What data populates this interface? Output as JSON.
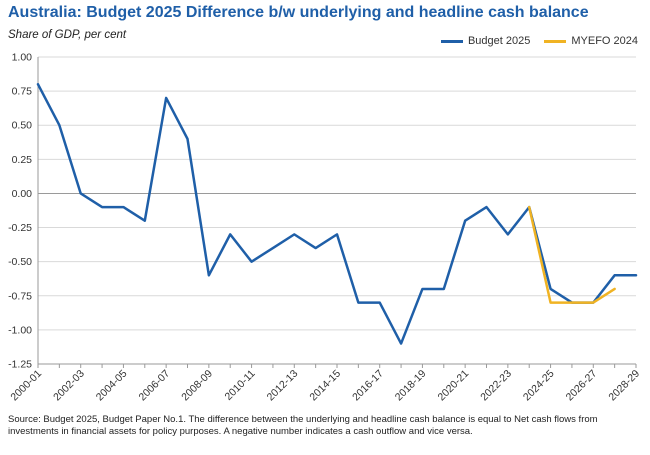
{
  "chart_data": {
    "type": "line",
    "title": "Australia: Budget 2025 Difference b/w underlying and headline cash balance",
    "subtitle": "Share of GDP, per cent",
    "ylim": [
      -1.25,
      1.0
    ],
    "y_ticks": [
      "1.00",
      "0.75",
      "0.50",
      "0.25",
      "0.00",
      "-0.25",
      "-0.50",
      "-0.75",
      "-1.00",
      "-1.25"
    ],
    "y_tick_values": [
      1.0,
      0.75,
      0.5,
      0.25,
      0.0,
      -0.25,
      -0.5,
      -0.75,
      -1.0,
      -1.25
    ],
    "categories": [
      "2000-01",
      "2001-02",
      "2002-03",
      "2003-04",
      "2004-05",
      "2005-06",
      "2006-07",
      "2007-08",
      "2008-09",
      "2009-10",
      "2010-11",
      "2011-12",
      "2012-13",
      "2013-14",
      "2014-15",
      "2015-16",
      "2016-17",
      "2017-18",
      "2018-19",
      "2019-20",
      "2020-21",
      "2021-22",
      "2022-23",
      "2023-24",
      "2024-25",
      "2025-26",
      "2026-27",
      "2027-28",
      "2028-29"
    ],
    "x_tick_labels": [
      "2000-01",
      "2002-03",
      "2004-05",
      "2006-07",
      "2008-09",
      "2010-11",
      "2012-13",
      "2014-15",
      "2016-17",
      "2018-19",
      "2020-21",
      "2022-23",
      "2024-25",
      "2026-27",
      "2028-29"
    ],
    "grid": "horizontal",
    "legend_position": "top-right",
    "series": [
      {
        "name": "Budget 2025",
        "color": "#1f5fa8",
        "values": [
          0.8,
          0.5,
          0.0,
          -0.1,
          -0.1,
          -0.2,
          0.7,
          0.4,
          -0.6,
          -0.3,
          -0.5,
          -0.4,
          -0.3,
          -0.4,
          -0.3,
          -0.8,
          -0.8,
          -1.1,
          -0.7,
          -0.7,
          -0.2,
          -0.1,
          -0.3,
          -0.1,
          -0.7,
          -0.8,
          -0.8,
          -0.6,
          -0.6
        ]
      },
      {
        "name": "MYEFO 2024",
        "color": "#f0b323",
        "values": [
          null,
          null,
          null,
          null,
          null,
          null,
          null,
          null,
          null,
          null,
          null,
          null,
          null,
          null,
          null,
          null,
          null,
          null,
          null,
          null,
          null,
          null,
          null,
          -0.1,
          -0.8,
          -0.8,
          -0.8,
          -0.7,
          null
        ]
      }
    ],
    "source": "Source: Budget 2025, Budget Paper No.1. The  difference between the underlying and headline cash balance is equal to Net cash flows from investments in financial assets for policy purposes. A negative number indicates a cash outflow and vice versa."
  }
}
